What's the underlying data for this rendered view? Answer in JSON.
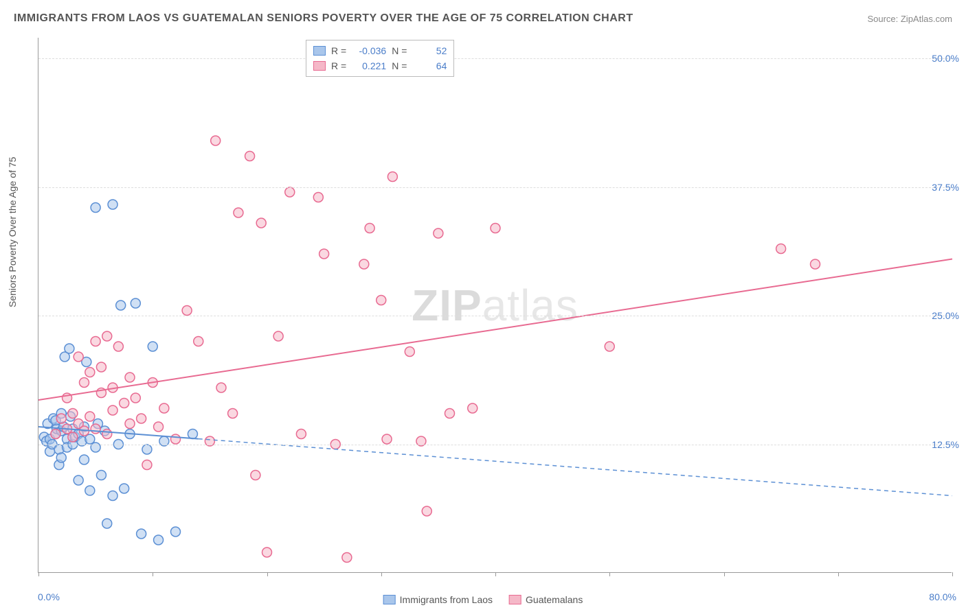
{
  "title": "IMMIGRANTS FROM LAOS VS GUATEMALAN SENIORS POVERTY OVER THE AGE OF 75 CORRELATION CHART",
  "source": "Source: ZipAtlas.com",
  "y_axis_label": "Seniors Poverty Over the Age of 75",
  "watermark_zip": "ZIP",
  "watermark_atlas": "atlas",
  "chart": {
    "type": "scatter",
    "xlim": [
      0,
      80
    ],
    "ylim": [
      0,
      52
    ],
    "x_corner_left": "0.0%",
    "x_corner_right": "80.0%",
    "y_ticks": [
      12.5,
      25.0,
      37.5,
      50.0
    ],
    "y_tick_labels": [
      "12.5%",
      "25.0%",
      "37.5%",
      "50.0%"
    ],
    "x_tick_positions": [
      0,
      10,
      20,
      30,
      40,
      50,
      60,
      70,
      80
    ],
    "background_color": "#ffffff",
    "grid_color": "#dddddd",
    "axis_color": "#999999",
    "label_color": "#4a7dc9",
    "title_color": "#555555",
    "marker_radius": 7,
    "marker_stroke_width": 1.5,
    "line_width": 2,
    "series": [
      {
        "name": "Immigrants from Laos",
        "legend_label": "Immigrants from Laos",
        "fill": "#a9c6eb",
        "stroke": "#5b8fd4",
        "fill_opacity": 0.55,
        "R": "-0.036",
        "N": "52",
        "trend": {
          "x1": 0,
          "y1": 14.2,
          "x2": 80,
          "y2": 7.5,
          "solid_until_x": 14
        },
        "points": [
          [
            0.5,
            13.2
          ],
          [
            0.7,
            12.8
          ],
          [
            0.8,
            14.5
          ],
          [
            1.0,
            13.0
          ],
          [
            1.0,
            11.8
          ],
          [
            1.2,
            12.5
          ],
          [
            1.3,
            15.0
          ],
          [
            1.5,
            13.5
          ],
          [
            1.5,
            14.8
          ],
          [
            1.6,
            14.0
          ],
          [
            1.8,
            12.0
          ],
          [
            1.8,
            10.5
          ],
          [
            2.0,
            13.8
          ],
          [
            2.0,
            15.5
          ],
          [
            2.0,
            11.2
          ],
          [
            2.2,
            14.2
          ],
          [
            2.3,
            21.0
          ],
          [
            2.5,
            13.0
          ],
          [
            2.5,
            12.2
          ],
          [
            2.7,
            21.8
          ],
          [
            2.8,
            15.2
          ],
          [
            3.0,
            12.5
          ],
          [
            3.0,
            14.0
          ],
          [
            3.2,
            13.2
          ],
          [
            3.5,
            13.5
          ],
          [
            3.5,
            9.0
          ],
          [
            3.8,
            12.8
          ],
          [
            4.0,
            14.2
          ],
          [
            4.0,
            11.0
          ],
          [
            4.2,
            20.5
          ],
          [
            4.5,
            13.0
          ],
          [
            4.5,
            8.0
          ],
          [
            5.0,
            12.2
          ],
          [
            5.0,
            35.5
          ],
          [
            5.2,
            14.5
          ],
          [
            5.5,
            9.5
          ],
          [
            5.8,
            13.8
          ],
          [
            6.0,
            4.8
          ],
          [
            6.5,
            35.8
          ],
          [
            6.5,
            7.5
          ],
          [
            7.0,
            12.5
          ],
          [
            7.2,
            26.0
          ],
          [
            7.5,
            8.2
          ],
          [
            8.0,
            13.5
          ],
          [
            8.5,
            26.2
          ],
          [
            9.0,
            3.8
          ],
          [
            9.5,
            12.0
          ],
          [
            10.0,
            22.0
          ],
          [
            10.5,
            3.2
          ],
          [
            11.0,
            12.8
          ],
          [
            12.0,
            4.0
          ],
          [
            13.5,
            13.5
          ]
        ]
      },
      {
        "name": "Guatemalans",
        "legend_label": "Guatemalans",
        "fill": "#f5b8c8",
        "stroke": "#e86a91",
        "fill_opacity": 0.55,
        "R": "0.221",
        "N": "64",
        "trend": {
          "x1": 0,
          "y1": 16.8,
          "x2": 80,
          "y2": 30.5,
          "solid_until_x": 80
        },
        "points": [
          [
            1.5,
            13.5
          ],
          [
            2.0,
            15.0
          ],
          [
            2.5,
            14.0
          ],
          [
            2.5,
            17.0
          ],
          [
            3.0,
            13.2
          ],
          [
            3.0,
            15.5
          ],
          [
            3.5,
            14.5
          ],
          [
            3.5,
            21.0
          ],
          [
            4.0,
            13.8
          ],
          [
            4.0,
            18.5
          ],
          [
            4.5,
            15.2
          ],
          [
            4.5,
            19.5
          ],
          [
            5.0,
            22.5
          ],
          [
            5.0,
            14.0
          ],
          [
            5.5,
            17.5
          ],
          [
            5.5,
            20.0
          ],
          [
            6.0,
            13.5
          ],
          [
            6.0,
            23.0
          ],
          [
            6.5,
            15.8
          ],
          [
            6.5,
            18.0
          ],
          [
            7.0,
            22.0
          ],
          [
            7.5,
            16.5
          ],
          [
            8.0,
            14.5
          ],
          [
            8.0,
            19.0
          ],
          [
            8.5,
            17.0
          ],
          [
            9.0,
            15.0
          ],
          [
            9.5,
            10.5
          ],
          [
            10.0,
            18.5
          ],
          [
            10.5,
            14.2
          ],
          [
            11.0,
            16.0
          ],
          [
            12.0,
            13.0
          ],
          [
            13.0,
            25.5
          ],
          [
            14.0,
            22.5
          ],
          [
            15.0,
            12.8
          ],
          [
            15.5,
            42.0
          ],
          [
            16.0,
            18.0
          ],
          [
            17.0,
            15.5
          ],
          [
            17.5,
            35.0
          ],
          [
            18.5,
            40.5
          ],
          [
            19.0,
            9.5
          ],
          [
            19.5,
            34.0
          ],
          [
            20.0,
            2.0
          ],
          [
            21.0,
            23.0
          ],
          [
            22.0,
            37.0
          ],
          [
            23.0,
            13.5
          ],
          [
            24.5,
            36.5
          ],
          [
            25.0,
            31.0
          ],
          [
            26.0,
            12.5
          ],
          [
            27.0,
            1.5
          ],
          [
            28.5,
            30.0
          ],
          [
            29.0,
            33.5
          ],
          [
            30.0,
            26.5
          ],
          [
            30.5,
            13.0
          ],
          [
            31.0,
            38.5
          ],
          [
            32.5,
            21.5
          ],
          [
            33.5,
            12.8
          ],
          [
            34.0,
            6.0
          ],
          [
            35.0,
            33.0
          ],
          [
            36.0,
            15.5
          ],
          [
            38.0,
            16.0
          ],
          [
            40.0,
            33.5
          ],
          [
            50.0,
            22.0
          ],
          [
            65.0,
            31.5
          ],
          [
            68.0,
            30.0
          ]
        ]
      }
    ]
  },
  "stat_legend": {
    "r_label": "R =",
    "n_label": "N ="
  }
}
